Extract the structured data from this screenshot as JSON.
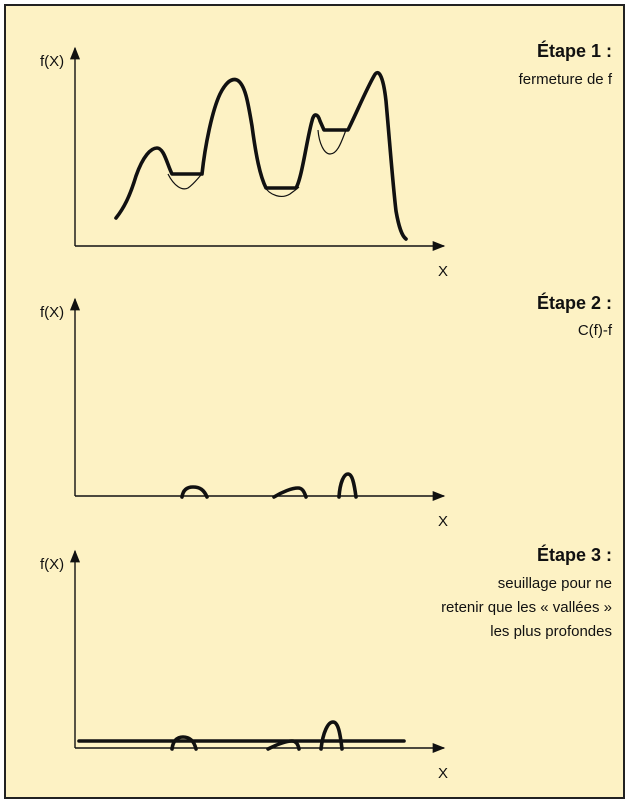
{
  "panels": [
    {
      "y_label": "f(X)",
      "x_label": "X",
      "title": "Étape 1 :",
      "description": [
        "fermeture de f"
      ]
    },
    {
      "y_label": "f(X)",
      "x_label": "X",
      "title": "Étape 2 :",
      "description": [
        "C(f)-f"
      ]
    },
    {
      "y_label": "f(X)",
      "x_label": "X",
      "title": "Étape 3 :",
      "description": [
        "seuillage pour ne",
        "retenir que les « vallées »",
        "les plus profondes"
      ]
    }
  ]
}
